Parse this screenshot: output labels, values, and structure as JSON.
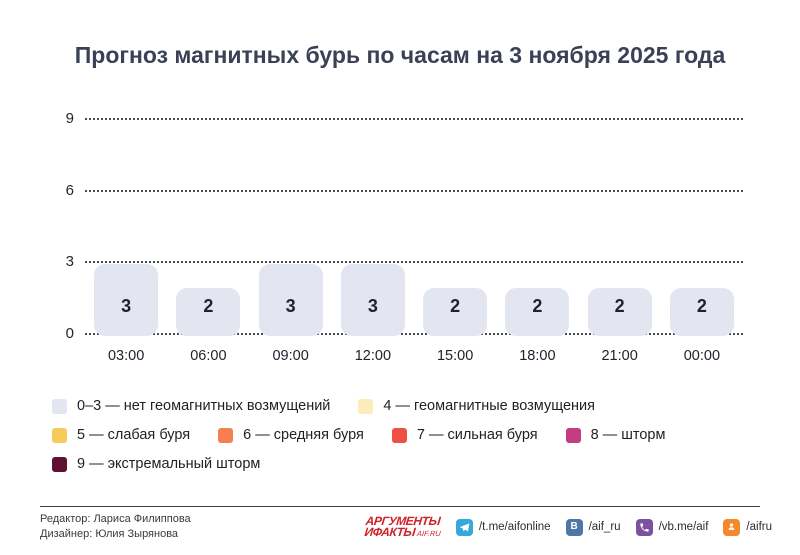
{
  "title": "Прогноз магнитных бурь по часам на 3 ноября 2025 года",
  "chart_data": {
    "type": "bar",
    "categories": [
      "03:00",
      "06:00",
      "09:00",
      "12:00",
      "15:00",
      "18:00",
      "21:00",
      "00:00"
    ],
    "values": [
      3,
      2,
      3,
      3,
      2,
      2,
      2,
      2
    ],
    "title": "Прогноз магнитных бурь по часам на 3 ноября 2025 года",
    "xlabel": "",
    "ylabel": "",
    "ylim": [
      0,
      9
    ],
    "yticks": [
      0,
      3,
      6,
      9
    ],
    "grid": "horizontal-dotted",
    "bar_color": "#e3e6f1",
    "value_label_color": "#1f222b",
    "legend_position": "bottom-left"
  },
  "legend": {
    "rows": [
      [
        {
          "label": "0–3 — нет геомагнитных возмущений",
          "color": "#e3e6f1"
        },
        {
          "label": "4 — геомагнитные возмущения",
          "color": "#fcecb9"
        }
      ],
      [
        {
          "label": "5 — слабая буря",
          "color": "#f6cb5c"
        },
        {
          "label": "6 — средняя буря",
          "color": "#f57f50"
        },
        {
          "label": "7 — сильная буря",
          "color": "#ef5044"
        },
        {
          "label": "8 — шторм",
          "color": "#c23e80"
        }
      ],
      [
        {
          "label": "9 — экстремальный шторм",
          "color": "#5f1033"
        }
      ]
    ]
  },
  "footer": {
    "credits": [
      "Редактор: Лариса Филиппова",
      "Дизайнер: Юлия Зырянова"
    ],
    "logo": {
      "line1": "АРГУМЕНТЫ",
      "line2": "ИФАКТЫ",
      "suffix": "AIF.RU",
      "color": "#cf2127"
    },
    "socials": [
      {
        "icon": "telegram-icon",
        "handle": "/t.me/aifonline",
        "color": "#35a8dc"
      },
      {
        "icon": "vk-icon",
        "handle": "/aif_ru",
        "color": "#4c78a8",
        "glyph": "В"
      },
      {
        "icon": "viber-icon",
        "handle": "/vb.me/aif",
        "color": "#7b52a2"
      },
      {
        "icon": "ok-icon",
        "handle": "/aifru",
        "color": "#f6882c"
      }
    ]
  }
}
